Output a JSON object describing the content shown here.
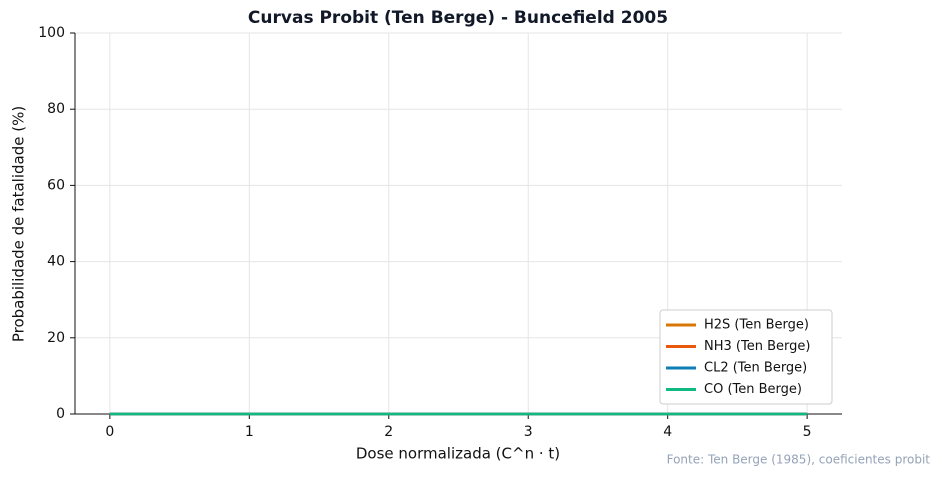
{
  "chart_data": {
    "type": "line",
    "title": "Curvas Probit (Ten Berge) - Buncefield 2005",
    "x_label": "Dose normalizada (C^n · t)",
    "y_label": "Probabilidade de fatalidade (%)",
    "annotation": "Fonte: Ten Berge (1985), coeficientes probit",
    "x": [
      0,
      5
    ],
    "series": [
      {
        "name": "H2S (Ten Berge)",
        "color": "#d97706",
        "values": [
          0,
          0
        ]
      },
      {
        "name": "NH3 (Ten Berge)",
        "color": "#ea580c",
        "values": [
          0,
          0
        ]
      },
      {
        "name": "CL2 (Ten Berge)",
        "color": "#0e7fb5",
        "values": [
          0,
          0
        ]
      },
      {
        "name": "CO (Ten Berge)",
        "color": "#10b981",
        "values": [
          0,
          0
        ]
      }
    ],
    "xlim": [
      -0.25,
      5.25
    ],
    "xticks": [
      0,
      1,
      2,
      3,
      4,
      5
    ],
    "ylim": [
      0,
      100
    ],
    "yticks": [
      0,
      20,
      40,
      60,
      80,
      100
    ],
    "grid": true,
    "legend": "lower right"
  }
}
